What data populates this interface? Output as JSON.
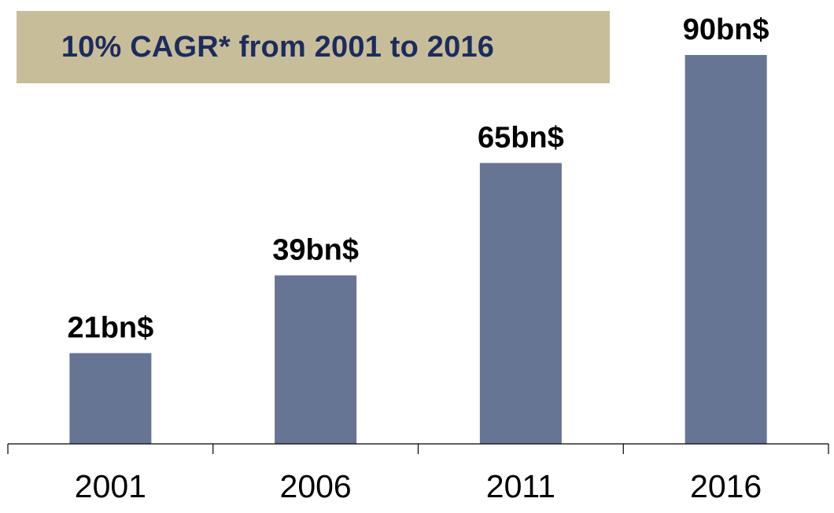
{
  "banner": {
    "text": "10% CAGR* from 2001 to 2016"
  },
  "colors": {
    "bar": "#667594",
    "banner_bg": "#c8bd99",
    "banner_text": "#1c2c5e",
    "axis": "#000000"
  },
  "chart_data": {
    "type": "bar",
    "title": "",
    "xlabel": "",
    "ylabel": "",
    "categories": [
      "2001",
      "2006",
      "2011",
      "2016"
    ],
    "values": [
      21,
      39,
      65,
      90
    ],
    "data_labels": [
      "21bn$",
      "39bn$",
      "65bn$",
      "90bn$"
    ],
    "ylim": [
      0,
      100
    ],
    "grid": false,
    "legend": "none"
  }
}
